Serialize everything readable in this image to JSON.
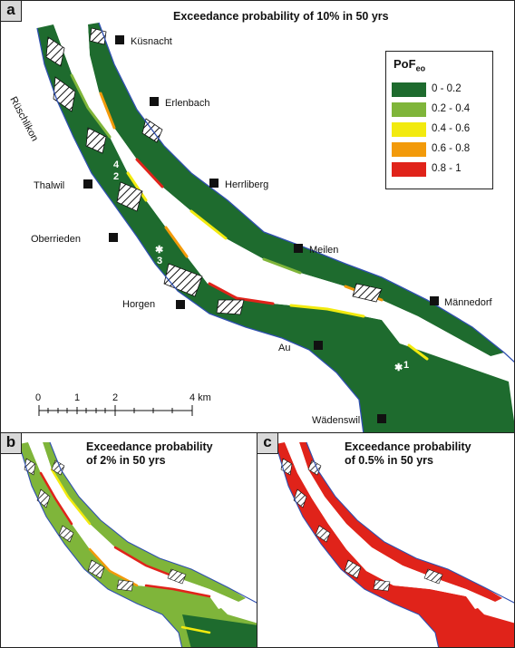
{
  "panels": {
    "a": {
      "letter": "a",
      "title": "Exceedance probability of 10% in 50 yrs",
      "towns": [
        "Küsnacht",
        "Erlenbach",
        "Rüschlikon",
        "Thalwil",
        "Herrliberg",
        "Oberrieden",
        "Meilen",
        "Horgen",
        "Männedorf",
        "Au",
        "Wädenswil"
      ],
      "sites": [
        "1",
        "2",
        "3",
        "4"
      ],
      "scalebar": {
        "ticks": [
          "0",
          "1",
          "2",
          "4 km"
        ]
      },
      "legend": {
        "title": "PoF",
        "title_sub": "eo",
        "classes": [
          {
            "label": "0 - 0.2",
            "color": "#1e6b2e"
          },
          {
            "label": "0.2 - 0.4",
            "color": "#7fb53a"
          },
          {
            "label": "0.4 - 0.6",
            "color": "#f2ea0f"
          },
          {
            "label": "0.6 - 0.8",
            "color": "#f29a0a"
          },
          {
            "label": "0.8 - 1",
            "color": "#e0231a"
          }
        ]
      }
    },
    "b": {
      "letter": "b",
      "title_line1": "Exceedance probability",
      "title_line2": "of 2% in 50 yrs"
    },
    "c": {
      "letter": "c",
      "title_line1": "Exceedance probability",
      "title_line2": "of 0.5% in 50 yrs"
    }
  },
  "colors": {
    "shore": "#2f4fb0",
    "low": "#1e6b2e",
    "mid": "#7fb53a",
    "high": "#f2ea0f",
    "vhigh": "#f29a0a",
    "max": "#e0231a"
  }
}
